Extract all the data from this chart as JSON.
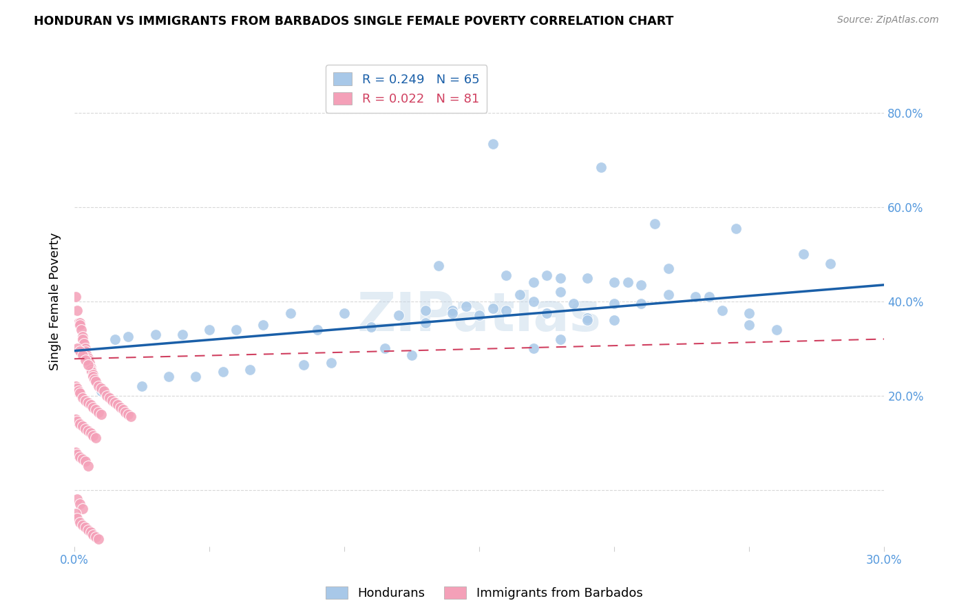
{
  "title": "HONDURAN VS IMMIGRANTS FROM BARBADOS SINGLE FEMALE POVERTY CORRELATION CHART",
  "source": "Source: ZipAtlas.com",
  "ylabel": "Single Female Poverty",
  "watermark": "ZIPatlas",
  "xlim": [
    0.0,
    0.3
  ],
  "ylim": [
    -0.12,
    0.92
  ],
  "blue_color": "#a8c8e8",
  "pink_color": "#f4a0b8",
  "blue_line_color": "#1a5fa8",
  "pink_line_color": "#d04060",
  "grid_color": "#d8d8d8",
  "background_color": "#ffffff",
  "tick_color": "#5599dd",
  "blue_line_y0": 0.295,
  "blue_line_y1": 0.435,
  "pink_line_y0": 0.278,
  "pink_line_y1": 0.32,
  "hondurans_x": [
    0.155,
    0.195,
    0.215,
    0.245,
    0.135,
    0.16,
    0.175,
    0.18,
    0.19,
    0.2,
    0.205,
    0.21,
    0.22,
    0.235,
    0.24,
    0.25,
    0.165,
    0.17,
    0.185,
    0.2,
    0.145,
    0.155,
    0.175,
    0.19,
    0.14,
    0.08,
    0.1,
    0.12,
    0.13,
    0.07,
    0.09,
    0.11,
    0.06,
    0.05,
    0.04,
    0.03,
    0.02,
    0.015,
    0.27,
    0.28,
    0.22,
    0.17,
    0.18,
    0.23,
    0.21,
    0.16,
    0.13,
    0.14,
    0.15,
    0.19,
    0.2,
    0.25,
    0.26,
    0.18,
    0.17,
    0.115,
    0.125,
    0.095,
    0.085,
    0.065,
    0.055,
    0.045,
    0.035,
    0.025,
    0.01
  ],
  "hondurans_y": [
    0.735,
    0.685,
    0.565,
    0.555,
    0.475,
    0.455,
    0.455,
    0.45,
    0.45,
    0.44,
    0.44,
    0.435,
    0.415,
    0.41,
    0.38,
    0.375,
    0.415,
    0.4,
    0.395,
    0.395,
    0.39,
    0.385,
    0.375,
    0.365,
    0.38,
    0.375,
    0.375,
    0.37,
    0.355,
    0.35,
    0.34,
    0.345,
    0.34,
    0.34,
    0.33,
    0.33,
    0.325,
    0.32,
    0.5,
    0.48,
    0.47,
    0.44,
    0.42,
    0.41,
    0.395,
    0.38,
    0.38,
    0.375,
    0.37,
    0.36,
    0.36,
    0.35,
    0.34,
    0.32,
    0.3,
    0.3,
    0.285,
    0.27,
    0.265,
    0.255,
    0.25,
    0.24,
    0.24,
    0.22,
    0.21
  ],
  "barbados_x": [
    0.0005,
    0.001,
    0.0015,
    0.002,
    0.002,
    0.0025,
    0.003,
    0.003,
    0.0035,
    0.004,
    0.004,
    0.0045,
    0.005,
    0.005,
    0.0055,
    0.006,
    0.006,
    0.0065,
    0.007,
    0.007,
    0.0075,
    0.008,
    0.009,
    0.01,
    0.011,
    0.012,
    0.013,
    0.014,
    0.015,
    0.016,
    0.017,
    0.018,
    0.019,
    0.02,
    0.021,
    0.001,
    0.002,
    0.003,
    0.004,
    0.005,
    0.0005,
    0.001,
    0.0015,
    0.002,
    0.003,
    0.004,
    0.005,
    0.006,
    0.007,
    0.008,
    0.009,
    0.01,
    0.0005,
    0.001,
    0.002,
    0.003,
    0.004,
    0.005,
    0.006,
    0.007,
    0.008,
    0.0005,
    0.001,
    0.002,
    0.003,
    0.004,
    0.005,
    0.001,
    0.002,
    0.003,
    0.0005,
    0.001,
    0.002,
    0.003,
    0.004,
    0.005,
    0.006,
    0.007,
    0.008,
    0.009
  ],
  "barbados_y": [
    0.41,
    0.38,
    0.355,
    0.355,
    0.35,
    0.34,
    0.325,
    0.32,
    0.31,
    0.3,
    0.295,
    0.285,
    0.28,
    0.275,
    0.27,
    0.26,
    0.255,
    0.25,
    0.245,
    0.24,
    0.235,
    0.23,
    0.22,
    0.215,
    0.21,
    0.2,
    0.195,
    0.19,
    0.185,
    0.18,
    0.175,
    0.17,
    0.165,
    0.16,
    0.155,
    0.3,
    0.295,
    0.285,
    0.275,
    0.265,
    0.22,
    0.215,
    0.21,
    0.205,
    0.195,
    0.19,
    0.185,
    0.18,
    0.175,
    0.17,
    0.165,
    0.16,
    0.15,
    0.145,
    0.14,
    0.135,
    0.13,
    0.125,
    0.12,
    0.115,
    0.11,
    0.08,
    0.075,
    0.07,
    0.065,
    0.06,
    0.05,
    -0.02,
    -0.03,
    -0.04,
    -0.05,
    -0.06,
    -0.07,
    -0.075,
    -0.08,
    -0.085,
    -0.09,
    -0.095,
    -0.1,
    -0.105
  ]
}
